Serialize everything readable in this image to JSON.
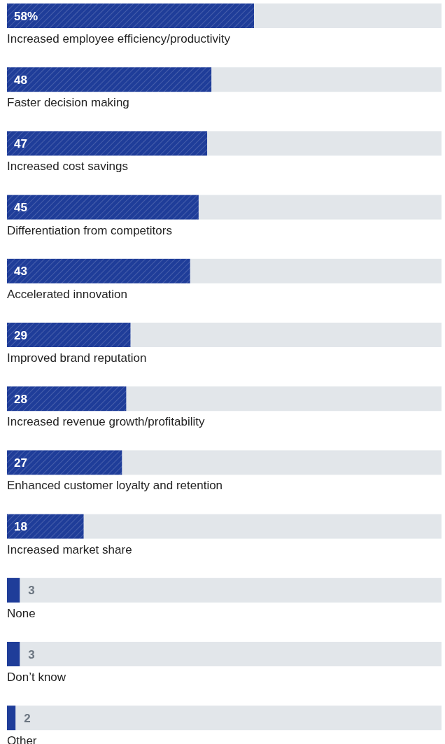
{
  "chart_data": {
    "type": "bar",
    "orientation": "horizontal",
    "categories": [
      "Increased employee efficiency/productivity",
      "Faster decision making",
      "Increased cost savings",
      "Differentiation from competitors",
      "Accelerated innovation",
      "Improved brand reputation",
      "Increased revenue growth/profitability",
      "Enhanced customer loyalty and retention",
      "Increased market share",
      "None",
      "Don’t know",
      "Other"
    ],
    "values": [
      58,
      48,
      47,
      45,
      43,
      29,
      28,
      27,
      18,
      3,
      3,
      2
    ],
    "value_labels": [
      "58%",
      "48",
      "47",
      "45",
      "43",
      "29",
      "28",
      "27",
      "18",
      "3",
      "3",
      "2"
    ],
    "color": "#1f3d99"
  }
}
